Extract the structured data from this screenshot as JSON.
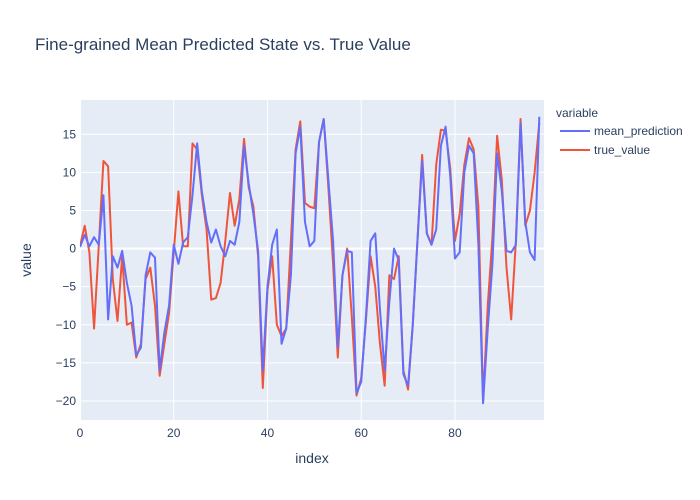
{
  "chart_data": {
    "type": "line",
    "title": "Fine-grained Mean Predicted State vs. True Value",
    "xlabel": "index",
    "ylabel": "value",
    "xlim": [
      0,
      99
    ],
    "ylim": [
      -22.5,
      19.5
    ],
    "xticks": [
      0,
      20,
      40,
      60,
      80
    ],
    "yticks": [
      -20,
      -15,
      -10,
      -5,
      0,
      5,
      10,
      15
    ],
    "grid": true,
    "legend": {
      "title": "variable",
      "placement": "right"
    },
    "colors": {
      "background": "#e5ecf6",
      "grid": "#ffffff",
      "text": "#2a3f5f",
      "mean_prediction": "#636efa",
      "true_value": "#ef553b"
    },
    "x": [
      0,
      1,
      2,
      3,
      4,
      5,
      6,
      7,
      8,
      9,
      10,
      11,
      12,
      13,
      14,
      15,
      16,
      17,
      18,
      19,
      20,
      21,
      22,
      23,
      24,
      25,
      26,
      27,
      28,
      29,
      30,
      31,
      32,
      33,
      34,
      35,
      36,
      37,
      38,
      39,
      40,
      41,
      42,
      43,
      44,
      45,
      46,
      47,
      48,
      49,
      50,
      51,
      52,
      53,
      54,
      55,
      56,
      57,
      58,
      59,
      60,
      61,
      62,
      63,
      64,
      65,
      66,
      67,
      68,
      69,
      70,
      71,
      72,
      73,
      74,
      75,
      76,
      77,
      78,
      79,
      80,
      81,
      82,
      83,
      84,
      85,
      86,
      87,
      88,
      89,
      90,
      91,
      92,
      93,
      94,
      95,
      96,
      97,
      98
    ],
    "series": [
      {
        "name": "mean_prediction",
        "values": [
          0.2,
          1.8,
          0.3,
          1.5,
          0.5,
          7.0,
          -9.3,
          -1.0,
          -2.5,
          -0.3,
          -4.5,
          -7.5,
          -14.0,
          -13.0,
          -3.5,
          -0.5,
          -1.2,
          -16.0,
          -11.0,
          -7.5,
          0.5,
          -2.0,
          0.8,
          1.5,
          7.0,
          13.8,
          7.5,
          3.5,
          0.8,
          2.5,
          0.3,
          -1.0,
          1.0,
          0.5,
          3.5,
          13.5,
          8.5,
          4.5,
          -0.3,
          -16.0,
          -5.0,
          0.5,
          2.5,
          -12.5,
          -10.5,
          -3.5,
          12.5,
          16.0,
          3.5,
          0.3,
          1.0,
          14.0,
          17.0,
          9.0,
          1.0,
          -13.0,
          -3.5,
          -0.3,
          -0.5,
          -19.0,
          -17.5,
          -9.0,
          1.0,
          2.0,
          -8.0,
          -16.0,
          -7.0,
          0.0,
          -1.5,
          -16.5,
          -18.0,
          -10.0,
          1.0,
          11.5,
          2.0,
          0.5,
          2.5,
          13.5,
          16.0,
          9.5,
          -1.3,
          -0.5,
          10.0,
          13.5,
          12.5,
          0.5,
          -20.3,
          -10.5,
          -2.0,
          12.5,
          7.5,
          -0.3,
          -0.5,
          0.5,
          16.5,
          3.5,
          -0.5,
          -1.5,
          17.3
        ]
      },
      {
        "name": "true_value",
        "values": [
          0.3,
          3.0,
          -0.5,
          -10.5,
          0.3,
          11.5,
          10.8,
          -4.0,
          -9.5,
          -1.0,
          -10.0,
          -9.7,
          -14.3,
          -12.5,
          -4.0,
          -2.5,
          -7.5,
          -16.7,
          -12.5,
          -8.5,
          -0.5,
          7.5,
          0.3,
          0.3,
          13.8,
          13.0,
          7.0,
          2.5,
          -6.7,
          -6.5,
          -4.5,
          1.0,
          7.3,
          3.0,
          6.5,
          14.4,
          8.0,
          5.5,
          -1.0,
          -18.3,
          -5.5,
          -1.0,
          -10.0,
          -11.5,
          -10.5,
          1.0,
          13.0,
          16.7,
          6.0,
          5.5,
          5.3,
          14.0,
          17.0,
          8.0,
          -2.0,
          -14.3,
          -3.5,
          0.0,
          -9.0,
          -19.3,
          -17.0,
          -9.5,
          -1.0,
          -5.0,
          -12.5,
          -18.0,
          -3.5,
          -4.0,
          -1.0,
          -16.0,
          -18.5,
          -10.0,
          1.0,
          12.3,
          2.0,
          0.5,
          11.0,
          15.6,
          15.5,
          10.5,
          1.0,
          4.5,
          11.0,
          14.5,
          13.0,
          5.5,
          -20.0,
          -7.5,
          1.5,
          14.8,
          9.0,
          -2.5,
          -9.3,
          1.0,
          17.0,
          3.0,
          5.0,
          10.0,
          16.5
        ]
      }
    ]
  }
}
